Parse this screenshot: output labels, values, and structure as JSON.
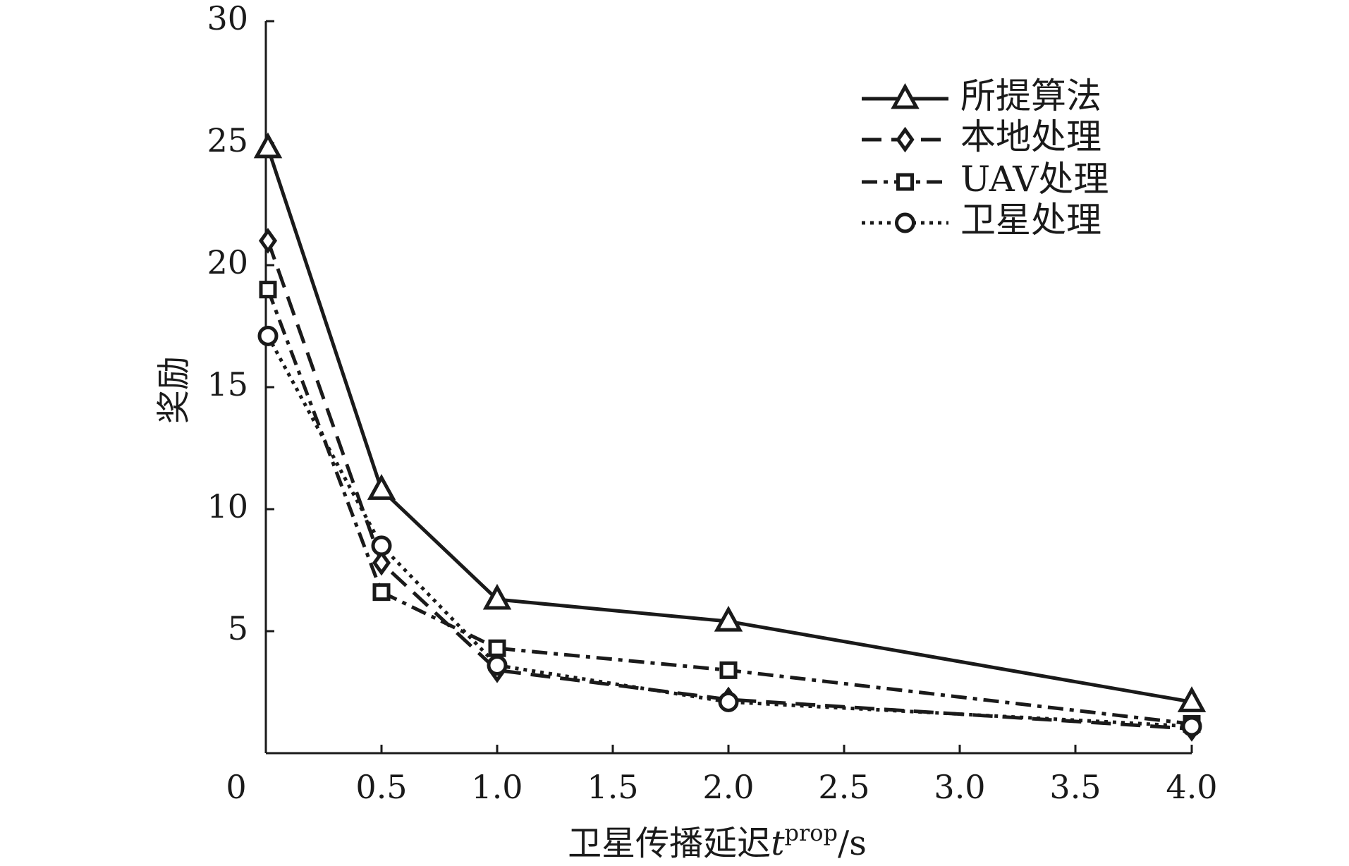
{
  "chart_data": {
    "type": "line",
    "x": [
      0,
      0.5,
      1.0,
      2.0,
      4.0
    ],
    "series": [
      {
        "name": "所提算法",
        "marker": "triangle",
        "dash": "solid",
        "values": [
          24.8,
          10.8,
          6.3,
          5.4,
          2.1
        ]
      },
      {
        "name": "本地处理",
        "marker": "diamond",
        "dash": "dashed",
        "values": [
          21.0,
          7.8,
          3.4,
          2.2,
          1.0
        ]
      },
      {
        "name": "UAV处理",
        "marker": "square",
        "dash": "dashdot",
        "values": [
          19.0,
          6.6,
          4.3,
          3.4,
          1.2
        ]
      },
      {
        "name": "卫星处理",
        "marker": "circle",
        "dash": "dotted",
        "values": [
          17.1,
          8.5,
          3.6,
          2.1,
          1.1
        ]
      }
    ],
    "x_ticks": [
      {
        "label": "0",
        "pos": 0
      },
      {
        "label": "0.5",
        "pos": 0.5
      },
      {
        "label": "1.0",
        "pos": 1.0
      },
      {
        "label": "1.5",
        "pos": 1.5
      },
      {
        "label": "2.0",
        "pos": 2.0
      },
      {
        "label": "2.5",
        "pos": 2.5
      },
      {
        "label": "3.0",
        "pos": 3.0
      },
      {
        "label": "3.5",
        "pos": 3.5
      },
      {
        "label": "4.0",
        "pos": 4.0
      }
    ],
    "y_ticks": [
      5,
      10,
      15,
      20,
      25,
      30
    ],
    "ylim": [
      0,
      30
    ],
    "ylabel": "奖励",
    "xlabel": {
      "prefix": "卫星传播延迟",
      "var": "t",
      "superscript": "prop",
      "suffix": "/s"
    },
    "legend_position": "top-right",
    "grid": false,
    "color": "#1a1a1a"
  }
}
